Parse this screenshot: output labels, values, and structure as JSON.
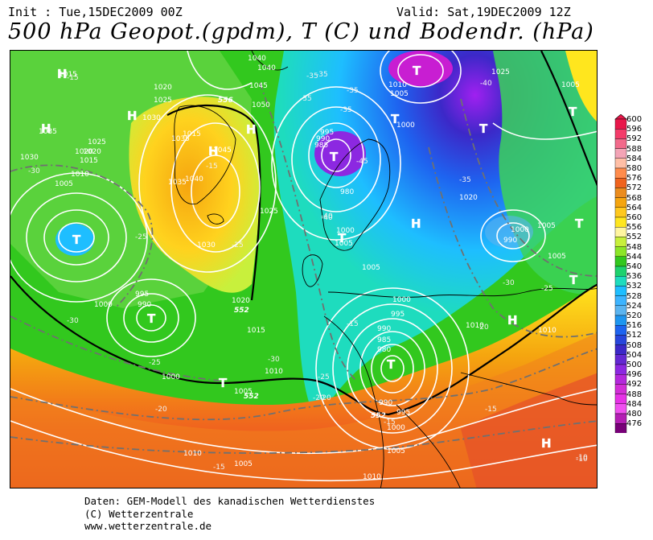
{
  "header": {
    "init": "Init : Tue,15DEC2009 00Z",
    "valid": "Valid: Sat,19DEC2009 12Z",
    "title": "500 hPa Geopot.(gpdm), T (C) und Bodendr. (hPa)"
  },
  "legend": {
    "values": [
      "600",
      "596",
      "592",
      "588",
      "584",
      "580",
      "576",
      "572",
      "568",
      "564",
      "560",
      "556",
      "552",
      "548",
      "544",
      "540",
      "536",
      "532",
      "528",
      "524",
      "520",
      "516",
      "512",
      "508",
      "504",
      "500",
      "496",
      "492",
      "488",
      "484",
      "480",
      "476"
    ],
    "colors": [
      "#e8174a",
      "#f43c6a",
      "#f26a8b",
      "#f3a4b6",
      "#ffbfa6",
      "#ff8c4c",
      "#f0641e",
      "#eb8c1e",
      "#f5a50f",
      "#ffc81e",
      "#ffe61e",
      "#fff5a0",
      "#c8f03c",
      "#8ce628",
      "#32c81e",
      "#1ed26e",
      "#1edcbe",
      "#1ebeff",
      "#3cb4ff",
      "#5ab4f0",
      "#1e96f0",
      "#1e64f0",
      "#2846dc",
      "#3c28c8",
      "#6428d2",
      "#8c28e1",
      "#b428dc",
      "#d22ed7",
      "#e632e6",
      "#f050f0",
      "#b41eb4",
      "#780078"
    ]
  },
  "pressure_systems": [
    {
      "type": "H",
      "label": "H"
    },
    {
      "type": "H",
      "label": "H"
    },
    {
      "type": "H",
      "label": "H"
    },
    {
      "type": "H",
      "label": "H"
    },
    {
      "type": "H",
      "label": "H"
    },
    {
      "type": "H",
      "label": "H"
    },
    {
      "type": "H",
      "label": "H"
    },
    {
      "type": "H",
      "label": "H"
    },
    {
      "type": "T",
      "label": "T"
    },
    {
      "type": "T",
      "label": "T"
    },
    {
      "type": "T",
      "label": "T"
    },
    {
      "type": "T",
      "label": "T"
    },
    {
      "type": "T",
      "label": "T"
    },
    {
      "type": "T",
      "label": "T"
    },
    {
      "type": "T",
      "label": "T"
    },
    {
      "type": "T",
      "label": "T"
    },
    {
      "type": "T",
      "label": "T"
    },
    {
      "type": "T",
      "label": "T"
    },
    {
      "type": "T",
      "label": "T"
    },
    {
      "type": "T",
      "label": "T"
    }
  ],
  "isobar_labels": [
    "1015",
    "1040",
    "1035",
    "1020",
    "1025",
    "1045",
    "1050",
    "1010",
    "1005",
    "1000",
    "995",
    "990",
    "985",
    "980",
    "1030",
    "1015",
    "1005",
    "1040",
    "1045",
    "1035",
    "1025",
    "1030",
    "1020",
    "1015",
    "1010",
    "1005",
    "1000",
    "995",
    "990",
    "1000",
    "1005",
    "1010",
    "1015",
    "1020",
    "1005",
    "1000",
    "995",
    "990",
    "985",
    "980",
    "990",
    "995",
    "1000",
    "1005",
    "1010",
    "1010",
    "1010",
    "1020",
    "1025",
    "1005",
    "1005",
    "1000",
    "1010",
    "1000",
    "1005",
    "990",
    "1005",
    "1030",
    "1035",
    "1040",
    "1020",
    "1025"
  ],
  "isotherm_labels": [
    "-15",
    "-30",
    "-35",
    "-35",
    "-35",
    "-35",
    "-40",
    "-45",
    "-40",
    "-35",
    "-30",
    "-25",
    "-20",
    "-15",
    "-15",
    "-20",
    "-25",
    "-30",
    "-25",
    "-20",
    "-15",
    "-10",
    "-25",
    "-30",
    "-35",
    "-40",
    "-25",
    "-20",
    "-15",
    "-10",
    "-15"
  ],
  "geopot_labels": [
    "556",
    "552",
    "552",
    "552",
    "552"
  ],
  "footer": {
    "line1": "Daten: GEM-Modell des kanadischen Wetterdienstes",
    "line2": "(C) Wetterzentrale",
    "line3": "www.wetterzentrale.de"
  }
}
